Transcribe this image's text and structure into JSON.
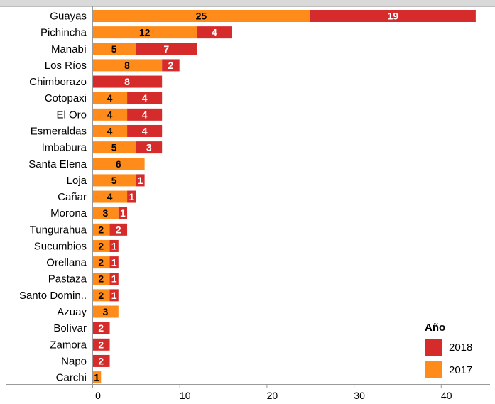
{
  "chart_data": {
    "type": "bar",
    "orientation": "horizontal",
    "stacked": true,
    "categories": [
      "Guayas",
      "Pichincha",
      "Manabí",
      "Los Ríos",
      "Chimborazo",
      "Cotopaxi",
      "El Oro",
      "Esmeraldas",
      "Imbabura",
      "Santa Elena",
      "Loja",
      "Cañar",
      "Morona",
      "Tungurahua",
      "Sucumbios",
      "Orellana",
      "Pastaza",
      "Santo Domin..",
      "Azuay",
      "Bolívar",
      "Zamora",
      "Napo",
      "Carchi"
    ],
    "series": [
      {
        "name": "2017",
        "color": "#ff8c1a",
        "values": [
          25,
          12,
          5,
          8,
          0,
          4,
          4,
          4,
          5,
          6,
          5,
          4,
          3,
          2,
          2,
          2,
          2,
          2,
          3,
          0,
          0,
          0,
          1
        ]
      },
      {
        "name": "2018",
        "color": "#d62b2b",
        "values": [
          19,
          4,
          7,
          2,
          8,
          4,
          4,
          4,
          3,
          0,
          1,
          1,
          1,
          2,
          1,
          1,
          1,
          1,
          0,
          2,
          2,
          2,
          0
        ]
      }
    ],
    "xlim": [
      0,
      45
    ],
    "xticks": [
      0,
      10,
      20,
      30,
      40
    ],
    "legend": {
      "title": "Año",
      "position": "bottom-right",
      "entries": [
        {
          "label": "2018",
          "color": "#d62b2b"
        },
        {
          "label": "2017",
          "color": "#ff8c1a"
        }
      ]
    },
    "grid": false
  }
}
